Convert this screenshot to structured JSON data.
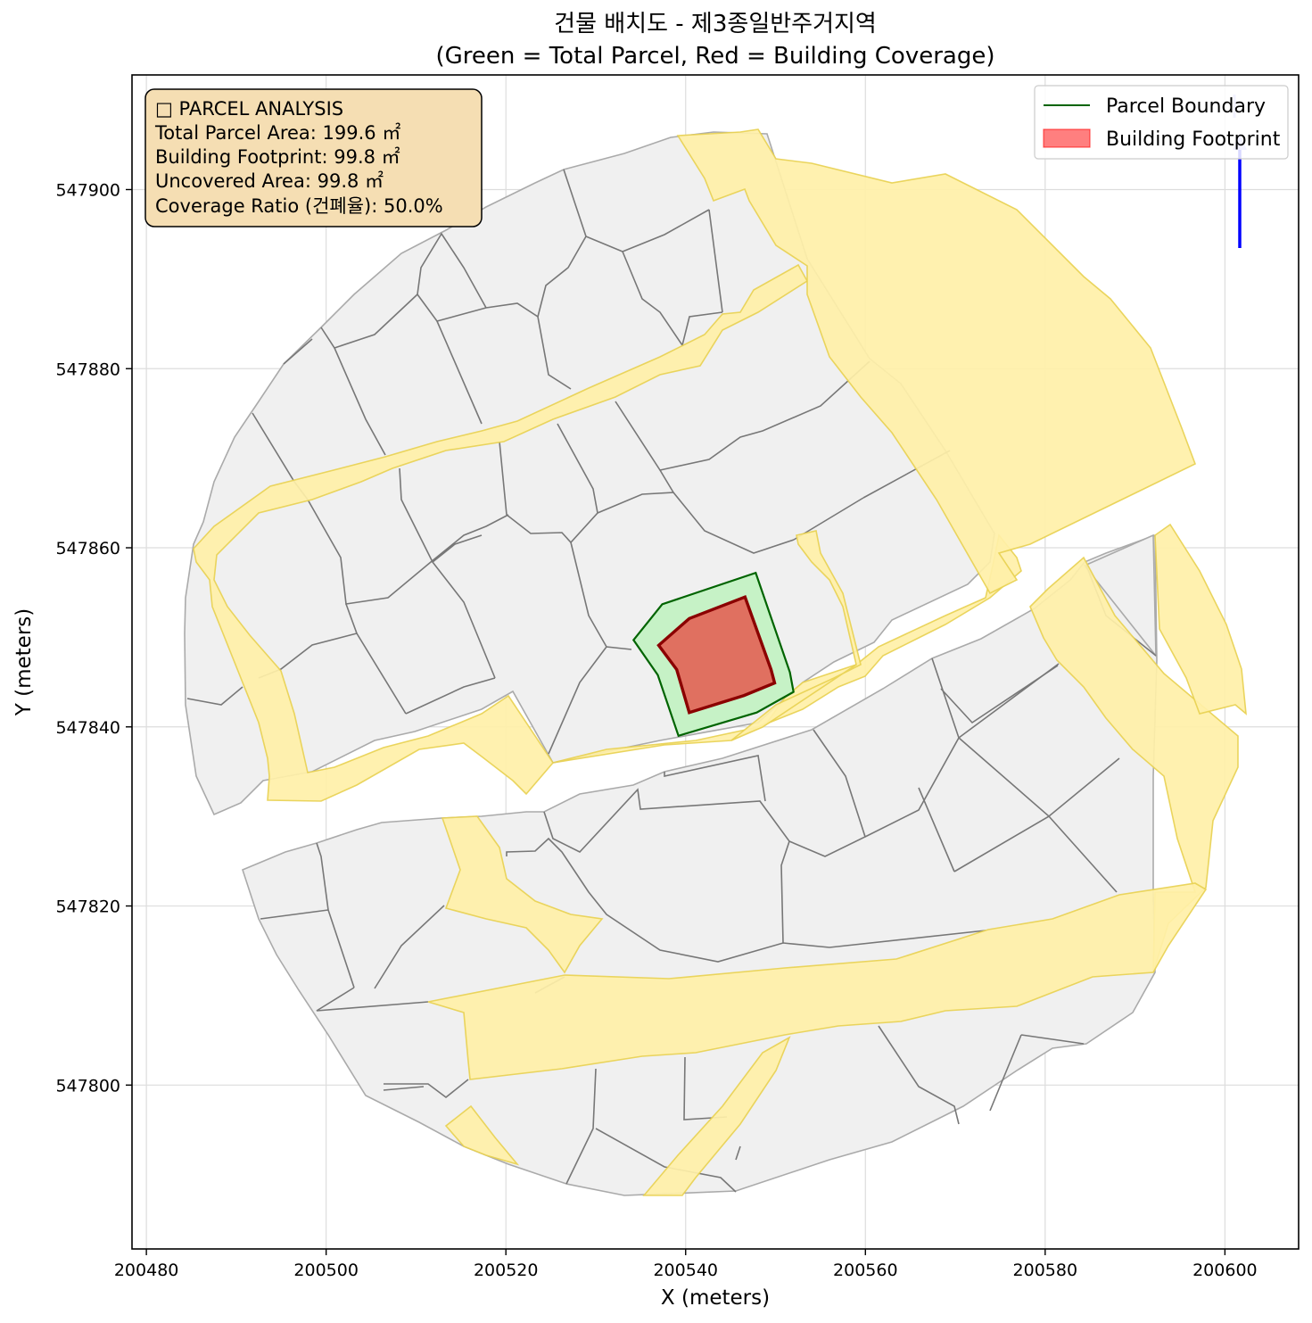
{
  "title_line1": "건물 배치도 - 제3종일반주거지역",
  "title_line2": "(Green = Total Parcel, Red = Building Coverage)",
  "xlabel": "X (meters)",
  "ylabel": "Y (meters)",
  "x_ticks": [
    "200480",
    "200500",
    "200520",
    "200540",
    "200560",
    "200580",
    "200600"
  ],
  "y_ticks": [
    "547800",
    "547820",
    "547840",
    "547860",
    "547880",
    "547900"
  ],
  "axes": {
    "xlim": [
      200478.4,
      200608.2
    ],
    "ylim": [
      547781.7,
      547912.8
    ]
  },
  "info_box": {
    "heading": "□ PARCEL ANALYSIS",
    "total_area": "Total Parcel Area: 199.6 ㎡",
    "footprint": "Building Footprint: 99.8 ㎡",
    "uncovered": "Uncovered Area: 99.8 ㎡",
    "coverage": "Coverage Ratio (건폐율): 50.0%"
  },
  "legend": {
    "parcel": "Parcel Boundary",
    "building": "Building Footprint"
  },
  "colors": {
    "parcel_fill": "#c6f2c6",
    "parcel_edge": "#006400",
    "building_fill": "#e07060",
    "building_edge": "#8b0000",
    "road_fill": "#fff0a8",
    "road_edge": "#e8d050",
    "lot_fill": "#f0f0f0",
    "lot_edge": "#777777",
    "north_arrow": "#0000ff",
    "info_bg": "#f5deb3"
  },
  "chart_data": {
    "type": "map",
    "title": "건물 배치도 - 제3종일반주거지역 (Green = Total Parcel, Red = Building Coverage)",
    "xlabel": "X (meters)",
    "ylabel": "Y (meters)",
    "xlim": [
      200478.4,
      200608.2
    ],
    "ylim": [
      547781.7,
      547912.8
    ],
    "grid": true,
    "legend_position": "top-right",
    "parcel_boundary": [
      [
        200534.2,
        547849.7
      ],
      [
        200537.4,
        547853.7
      ],
      [
        200547.8,
        547857.2
      ],
      [
        200551.6,
        547846.1
      ],
      [
        200552.0,
        547843.9
      ],
      [
        200547.9,
        547841.6
      ],
      [
        200539.2,
        547839.0
      ],
      [
        200536.9,
        547845.8
      ]
    ],
    "building_footprint": [
      [
        200537.0,
        547849.1
      ],
      [
        200540.4,
        547852.1
      ],
      [
        200546.6,
        547854.5
      ],
      [
        200549.5,
        547846.4
      ],
      [
        200549.9,
        547844.9
      ],
      [
        200546.5,
        547843.5
      ],
      [
        200540.4,
        547841.6
      ],
      [
        200539.0,
        547846.4
      ]
    ],
    "stats": {
      "total_parcel_area_m2": 199.6,
      "building_footprint_m2": 99.8,
      "uncovered_area_m2": 99.8,
      "coverage_ratio_pct": 50.0
    }
  }
}
